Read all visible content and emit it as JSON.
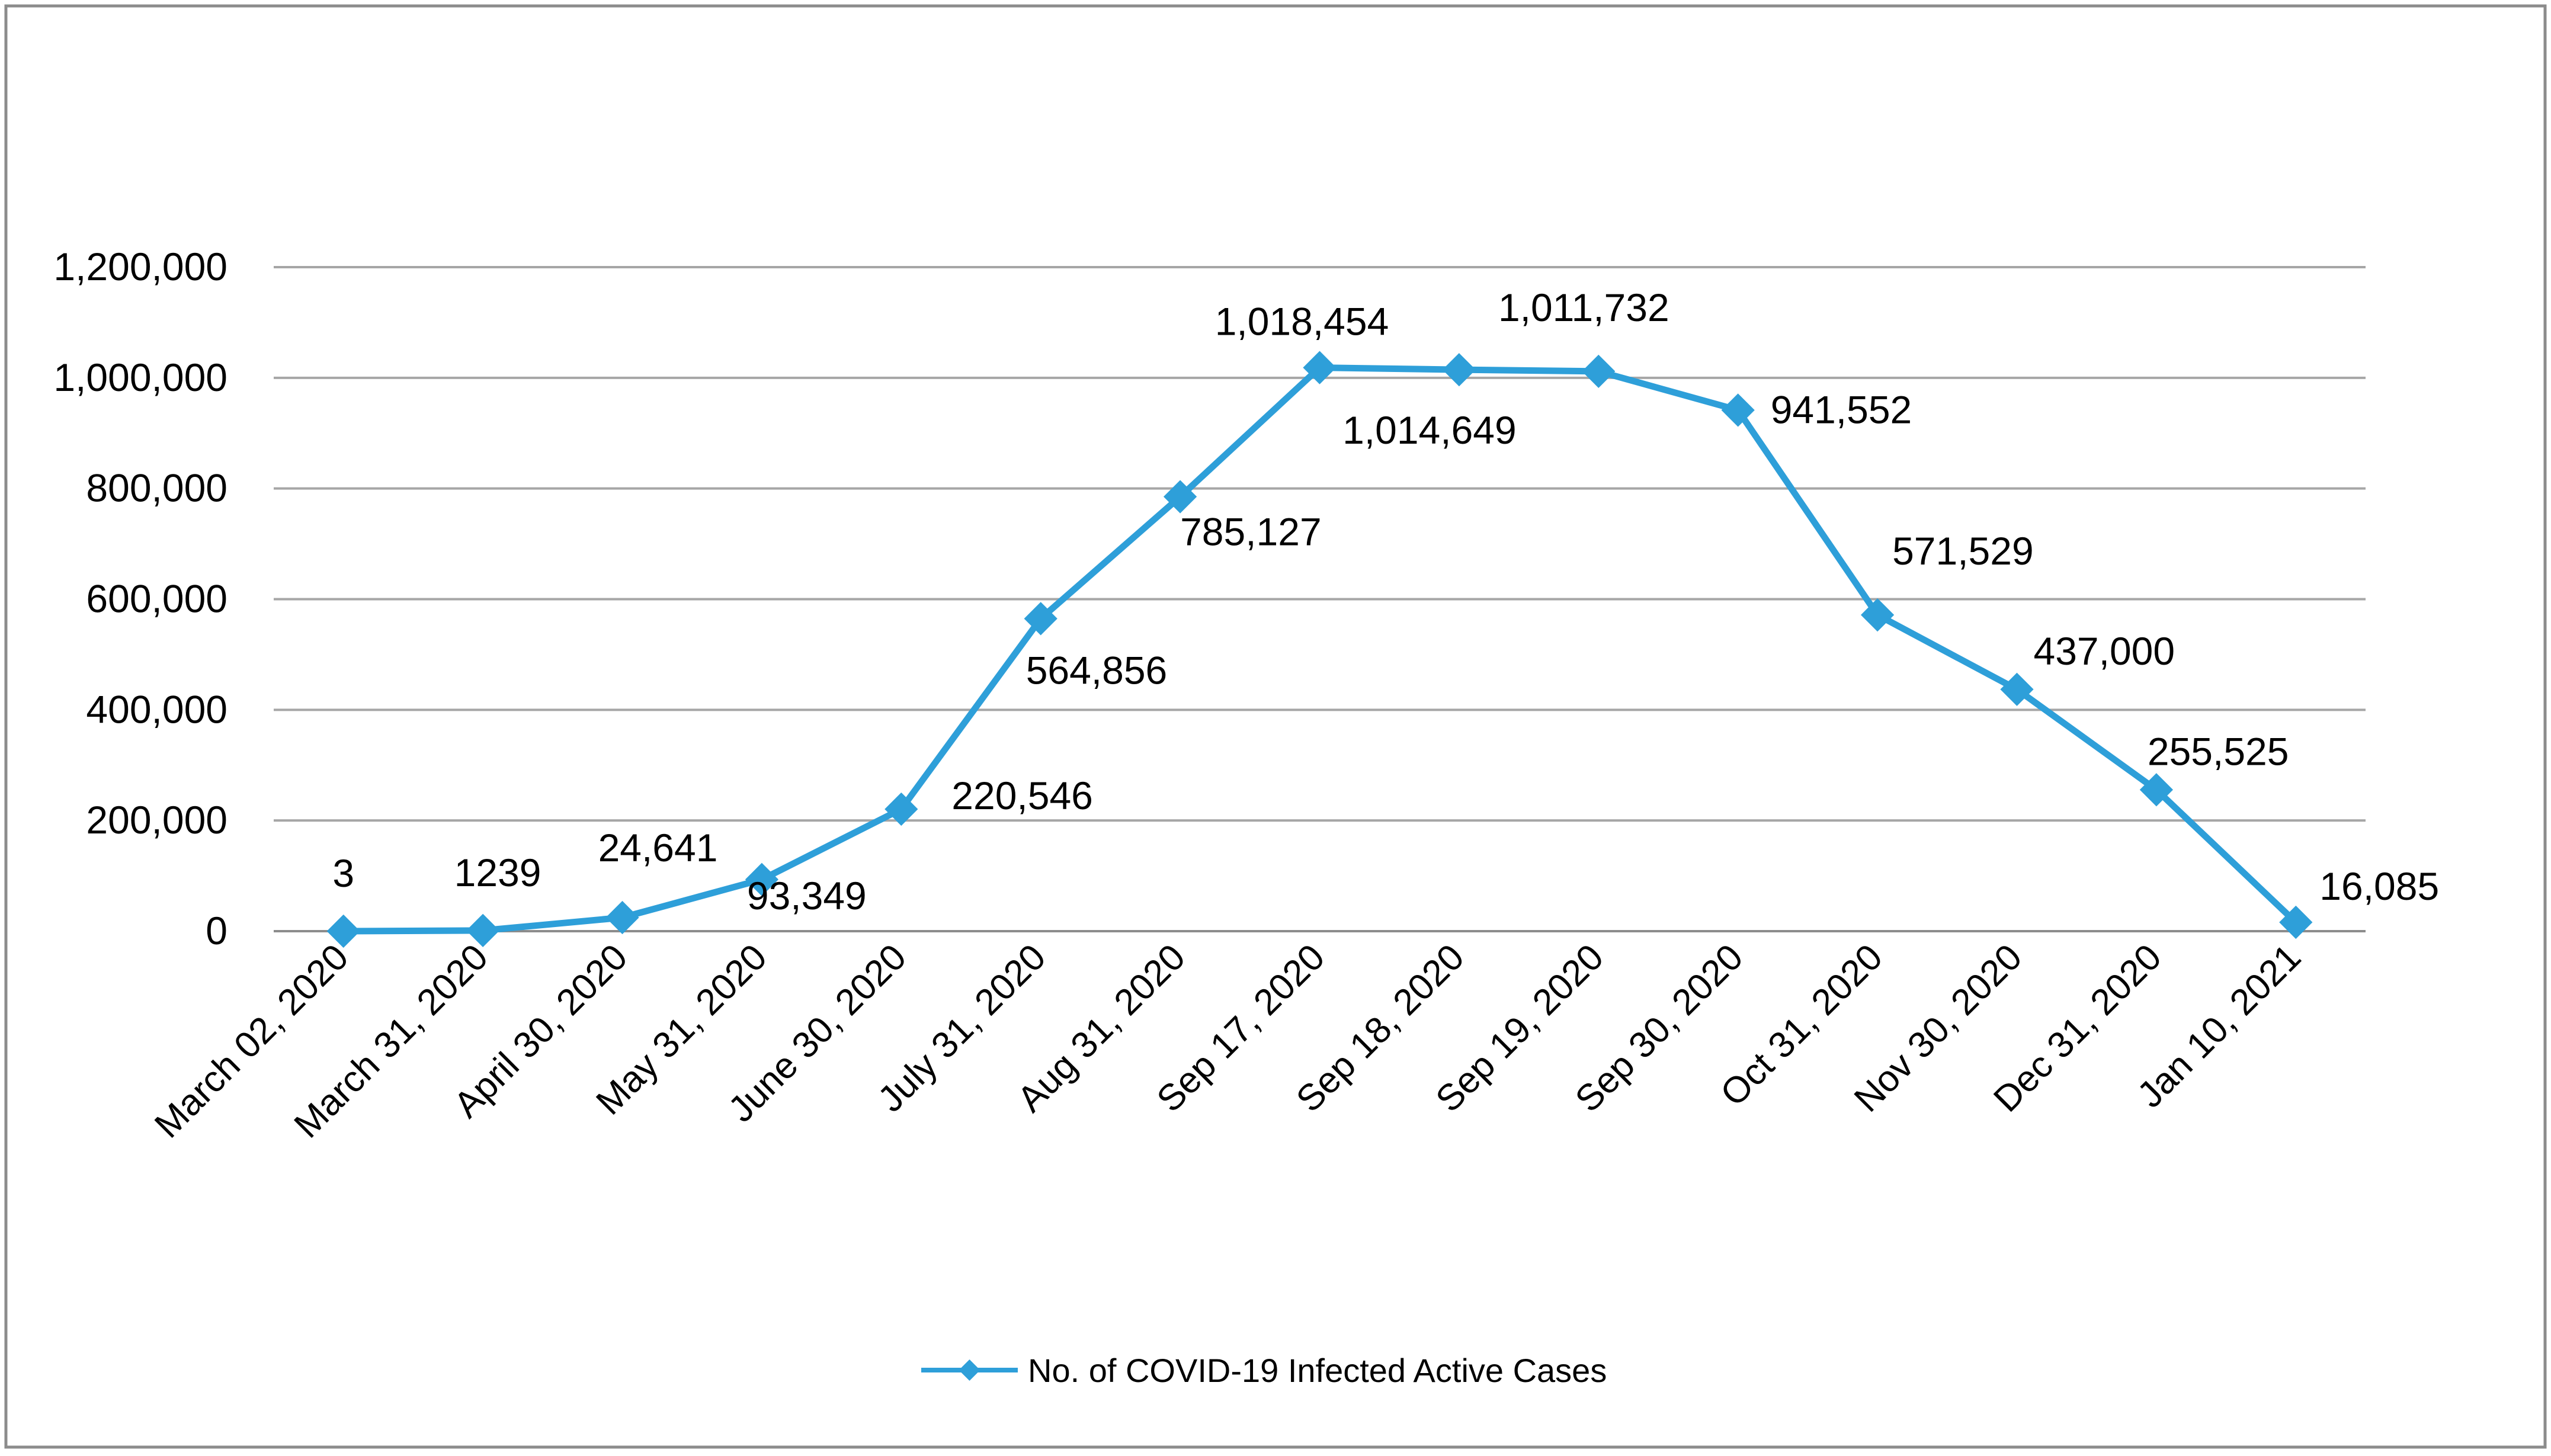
{
  "chart_data": {
    "type": "line",
    "title": "",
    "xlabel": "",
    "ylabel": "",
    "ylim": [
      0,
      1200000
    ],
    "grid": true,
    "legend_position": "bottom",
    "y_ticks": [
      "0",
      "200,000",
      "400,000",
      "600,000",
      "800,000",
      "1,000,000",
      "1,200,000"
    ],
    "categories": [
      "March 02, 2020",
      "March 31, 2020",
      "April 30, 2020",
      "May 31, 2020",
      "June 30, 2020",
      "July 31, 2020",
      "Aug 31, 2020",
      "Sep 17, 2020",
      "Sep 18, 2020",
      "Sep 19, 2020",
      "Sep 30, 2020",
      "Oct 31, 2020",
      "Nov 30, 2020",
      "Dec 31, 2020",
      "Jan 10, 2021"
    ],
    "series": [
      {
        "name": "No. of COVID-19 Infected Active Cases",
        "color": "#2e9fd9",
        "values": [
          3,
          1239,
          24641,
          93349,
          220546,
          564856,
          785127,
          1018454,
          1014649,
          1011732,
          941552,
          571529,
          437000,
          255525,
          16085
        ],
        "labels": [
          "3",
          "1239",
          "24,641",
          "93,349",
          "220,546",
          "564,856",
          "785,127",
          "1,018,454",
          "1,014,649",
          "1,011,732",
          "941,552",
          "571,529",
          "437,000",
          "255,525",
          "16,085"
        ]
      }
    ]
  }
}
